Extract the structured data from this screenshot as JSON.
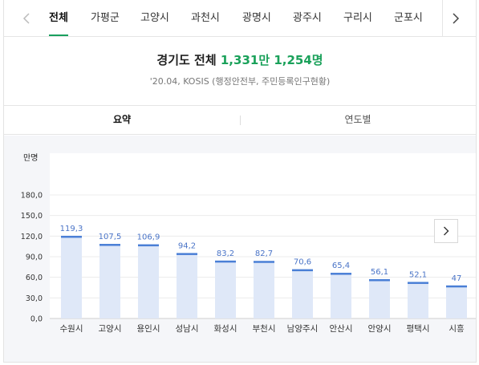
{
  "tabs": [
    {
      "label": "전체",
      "active": true
    },
    {
      "label": "가평군"
    },
    {
      "label": "고양시"
    },
    {
      "label": "과천시"
    },
    {
      "label": "광명시"
    },
    {
      "label": "광주시"
    },
    {
      "label": "구리시"
    },
    {
      "label": "군포시"
    }
  ],
  "headline": {
    "region": "경기도 전체",
    "population": "1,331만 1,254명"
  },
  "source": "'20.04, KOSIS (행정안전부, 주민등록인구현황)",
  "subtabs": [
    {
      "label": "요약",
      "active": true
    },
    {
      "label": "연도별"
    }
  ],
  "icons": {
    "prev": "chevron-left-icon",
    "next": "chevron-right-icon"
  },
  "colors": {
    "accent": "#1aa15a",
    "bar_fill": "#dfe8f8",
    "bar_cap": "#4a7fd6",
    "value_label": "#4a74c7"
  },
  "chart_data": {
    "type": "bar",
    "unit": "만명",
    "ylim": [
      0,
      180
    ],
    "yticks": [
      "180,0",
      "150,0",
      "120,0",
      "90,0",
      "60,0",
      "30,0",
      "0,0"
    ],
    "yticks_values": [
      180,
      150,
      120,
      90,
      60,
      30,
      0
    ],
    "categories": [
      "수원시",
      "고양시",
      "용인시",
      "성남시",
      "화성시",
      "부천시",
      "남양주시",
      "안산시",
      "안양시",
      "평택시",
      "시흥"
    ],
    "values": [
      119.3,
      107.5,
      106.9,
      94.2,
      83.2,
      82.7,
      70.6,
      65.4,
      56.1,
      52.1,
      47
    ],
    "value_labels": [
      "119,3",
      "107,5",
      "106,9",
      "94,2",
      "83,2",
      "82,7",
      "70,6",
      "65,4",
      "56,1",
      "52,1",
      "47"
    ],
    "grid": true,
    "legend": "none"
  }
}
